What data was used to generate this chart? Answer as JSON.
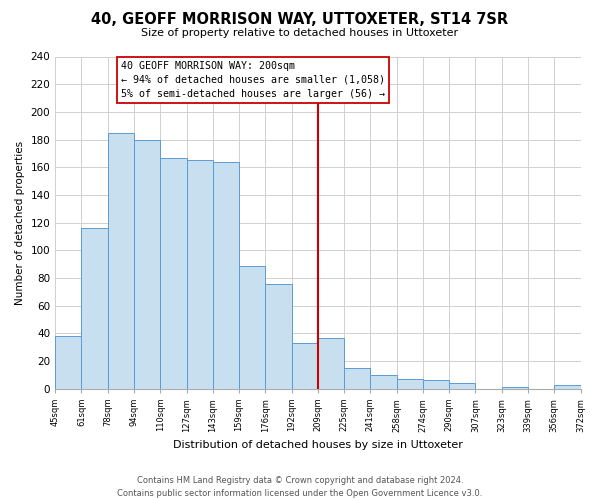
{
  "title": "40, GEOFF MORRISON WAY, UTTOXETER, ST14 7SR",
  "subtitle": "Size of property relative to detached houses in Uttoxeter",
  "xlabel": "Distribution of detached houses by size in Uttoxeter",
  "ylabel": "Number of detached properties",
  "bar_labels": [
    "45sqm",
    "61sqm",
    "78sqm",
    "94sqm",
    "110sqm",
    "127sqm",
    "143sqm",
    "159sqm",
    "176sqm",
    "192sqm",
    "209sqm",
    "225sqm",
    "241sqm",
    "258sqm",
    "274sqm",
    "290sqm",
    "307sqm",
    "323sqm",
    "339sqm",
    "356sqm",
    "372sqm"
  ],
  "bar_values": [
    38,
    116,
    185,
    180,
    167,
    165,
    164,
    89,
    76,
    33,
    37,
    15,
    10,
    7,
    6,
    4,
    0,
    1,
    0,
    3
  ],
  "bar_color": "#c8dff0",
  "bar_edge_color": "#5b9bd5",
  "vline_color": "#cc0000",
  "annotation_text": "40 GEOFF MORRISON WAY: 200sqm\n← 94% of detached houses are smaller (1,058)\n5% of semi-detached houses are larger (56) →",
  "annotation_box_color": "#ffffff",
  "annotation_box_edge": "#cc0000",
  "ylim": [
    0,
    240
  ],
  "yticks": [
    0,
    20,
    40,
    60,
    80,
    100,
    120,
    140,
    160,
    180,
    200,
    220,
    240
  ],
  "footer": "Contains HM Land Registry data © Crown copyright and database right 2024.\nContains public sector information licensed under the Open Government Licence v3.0.",
  "background_color": "#ffffff",
  "grid_color": "#d0d0d0"
}
